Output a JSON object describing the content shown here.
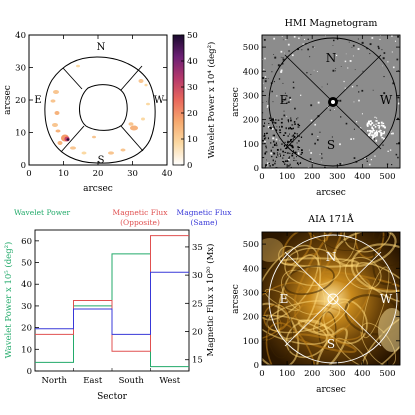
{
  "chart_data": [
    {
      "id": "wavelet-map",
      "type": "heatmap",
      "xlabel": "arcsec",
      "ylabel": "arcsec",
      "xlim": [
        0,
        40
      ],
      "ylim": [
        0,
        40
      ],
      "xticks": [
        "0",
        "10",
        "20",
        "30",
        "40"
      ],
      "yticks": [
        "0",
        "10",
        "20",
        "30",
        "40"
      ],
      "direction_labels": [
        "N",
        "E",
        "W",
        "S"
      ],
      "colorbar": {
        "label": "Wavelet Power x 10⁴ (deg²)",
        "range": [
          0,
          50
        ],
        "ticks": [
          "0",
          "10",
          "20",
          "30",
          "40",
          "50"
        ],
        "colors": [
          "#ffffff",
          "#fbd9a3",
          "#f6a96e",
          "#e9685c",
          "#b5386b",
          "#6b1f74",
          "#1a0a2e"
        ]
      }
    },
    {
      "id": "hmi-magnetogram",
      "type": "heatmap",
      "title": "HMI Magnetogram",
      "xlabel": "arcsec",
      "ylabel": "arcsec",
      "xlim": [
        0,
        550
      ],
      "ylim": [
        0,
        550
      ],
      "xticks": [
        "0",
        "100",
        "200",
        "300",
        "400",
        "500"
      ],
      "yticks": [
        "0",
        "100",
        "200",
        "300",
        "400",
        "500"
      ],
      "direction_labels": [
        "N",
        "E",
        "W",
        "S"
      ]
    },
    {
      "id": "sector-histogram",
      "type": "line",
      "categories": [
        "North",
        "East",
        "South",
        "West"
      ],
      "xlabel": "Sector",
      "ylabel": "Wavelet Power x 10⁵ (deg²)",
      "ylim": [
        0,
        65
      ],
      "yticks": [
        "0",
        "10",
        "20",
        "30",
        "40",
        "50",
        "60"
      ],
      "y2label": "Magnetic Flux x 10²⁰ (Mx)",
      "y2lim": [
        13,
        38
      ],
      "y2ticks": [
        "15",
        "20",
        "25",
        "30",
        "35"
      ],
      "series": [
        {
          "name": "Wavelet Power",
          "axis": "left",
          "color": "#22aa6a",
          "values": [
            4,
            30,
            54,
            2
          ]
        },
        {
          "name": "Magnetic Flux (Opposite)",
          "axis": "right",
          "color": "#e05050",
          "values": [
            19.5,
            25.5,
            16.5,
            37
          ]
        },
        {
          "name": "Magnetic Flux (Same)",
          "axis": "right",
          "color": "#3838d8",
          "values": [
            20.5,
            24,
            19.5,
            30.5
          ]
        }
      ],
      "legend_text": {
        "wavelet": "Wavelet Power",
        "flux_opp_1": "Magnetic Flux",
        "flux_opp_2": "(Opposite)",
        "flux_same_1": "Magnetic Flux",
        "flux_same_2": "(Same)"
      },
      "legend_placement": "top"
    },
    {
      "id": "aia-171",
      "type": "heatmap",
      "title": "AIA 171Å",
      "xlabel": "arcsec",
      "ylabel": "arcsec",
      "xlim": [
        0,
        550
      ],
      "ylim": [
        0,
        550
      ],
      "xticks": [
        "0",
        "100",
        "200",
        "300",
        "400",
        "500"
      ],
      "yticks": [
        "0",
        "100",
        "200",
        "300",
        "400",
        "500"
      ],
      "direction_labels": [
        "N",
        "E",
        "W",
        "S"
      ]
    }
  ]
}
